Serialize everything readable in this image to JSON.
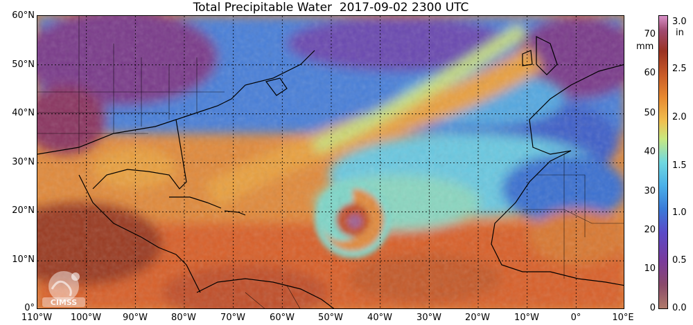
{
  "title": "Total Precipitable Water  2017-09-02 2300 UTC",
  "lat_labels": [
    "60°N",
    "50°N",
    "40°N",
    "30°N",
    "20°N",
    "10°N",
    "0°"
  ],
  "lon_labels": [
    "110°W",
    "100°W",
    "90°W",
    "80°W",
    "70°W",
    "60°W",
    "50°W",
    "40°W",
    "30°W",
    "20°W",
    "10°W",
    "0°",
    "10°E"
  ],
  "colorbar": {
    "mm_unit": "mm",
    "in_unit": "in",
    "mm_ticks": [
      "70",
      "60",
      "50",
      "40",
      "30",
      "20",
      "10",
      "0"
    ],
    "in_ticks": [
      "3.0",
      "2.5",
      "2.0",
      "1.5",
      "1.0",
      "0.5",
      "0.0"
    ]
  },
  "logo": {
    "text": "CIMSS"
  },
  "colors": {
    "dry": "#7a2f7a",
    "low": "#3f7fd6",
    "mid_low": "#5ec8e6",
    "mid": "#c8e07a",
    "mid_high": "#f0a040",
    "high": "#d8602a",
    "very_high": "#9a3a22"
  }
}
